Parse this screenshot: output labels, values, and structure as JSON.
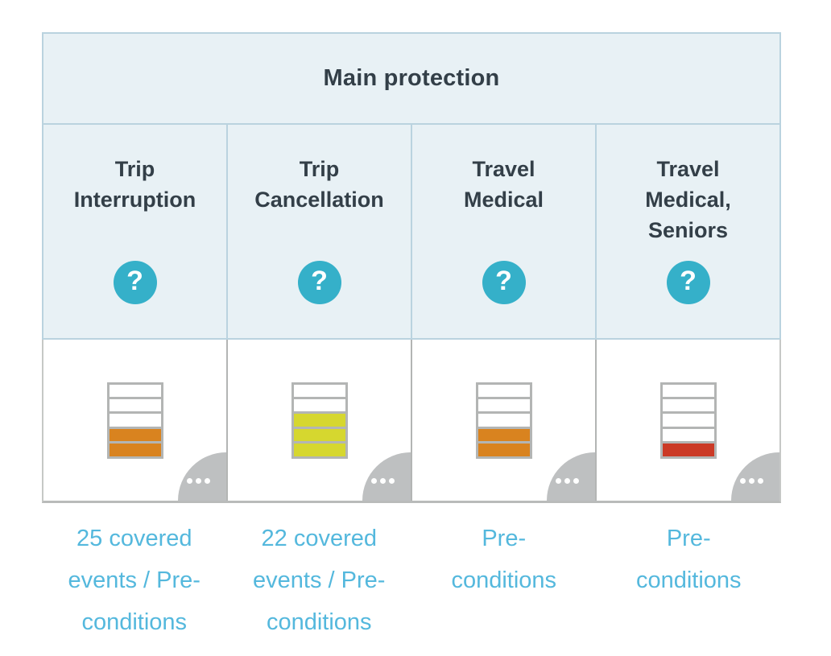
{
  "table": {
    "group_header": "Main protection",
    "help_glyph": "?",
    "columns": [
      {
        "title": "Trip Interruption",
        "rating": {
          "segments_total": 5,
          "segments_filled": 2,
          "fill_color": "#d9831f"
        },
        "link": "25 covered events / Pre-conditions"
      },
      {
        "title": "Trip Cancellation",
        "rating": {
          "segments_total": 5,
          "segments_filled": 3,
          "fill_color": "#d6d72f"
        },
        "link": "22 covered events / Pre-conditions"
      },
      {
        "title": "Travel Medical",
        "rating": {
          "segments_total": 5,
          "segments_filled": 2,
          "fill_color": "#d9831f"
        },
        "link": "Pre-conditions"
      },
      {
        "title": "Travel Medical, Seniors",
        "rating": {
          "segments_total": 5,
          "segments_filled": 1,
          "fill_color": "#cb3a26"
        },
        "link": "Pre-conditions"
      }
    ]
  },
  "colors": {
    "header_background": "#e8f1f5",
    "header_border": "#bad3df",
    "header_text": "#333f48",
    "help_icon_background": "#35b0c9",
    "link_text": "#54b8dd",
    "gauge_border": "#b3b5b4",
    "more_corner_background": "#bec0c1",
    "rating_orange": "#d9831f",
    "rating_yellow": "#d6d72f",
    "rating_red": "#cb3a26"
  }
}
